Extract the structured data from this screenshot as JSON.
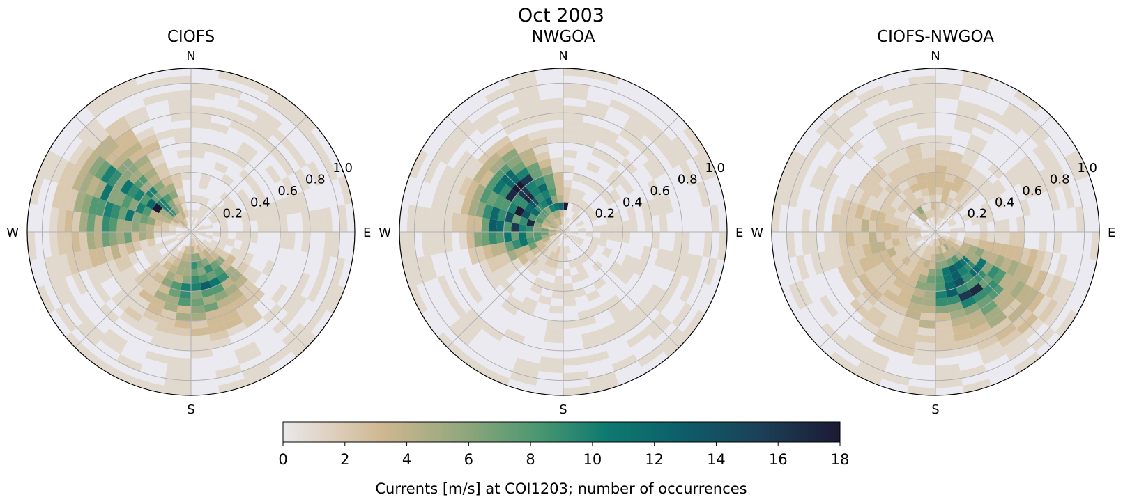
{
  "figure": {
    "suptitle": "Oct 2003",
    "colorbar_label": "Currents [m/s] at COI1203; number of occurrences"
  },
  "colors": {
    "axes_background": "#ebeaf0",
    "grid": "#b0b0b0",
    "colormap": [
      "#ebe8ea",
      "#cfb790",
      "#93a77d",
      "#4f9871",
      "#0e7a70",
      "#0d5d68",
      "#1c3f57",
      "#1c1a33"
    ]
  },
  "chart_data": [
    {
      "type": "heatmap",
      "subtype": "polar current rose (2-D histogram of direction vs speed)",
      "title": "CIOFS",
      "compass_labels": [
        "N",
        "E",
        "S",
        "W"
      ],
      "radial_ticks": [
        0.2,
        0.4,
        0.6,
        0.8,
        1.0
      ],
      "rlim": [
        0,
        1.1
      ],
      "n_direction_bins": 36,
      "speed_bin_width": 0.05,
      "hotspots": [
        {
          "dir_deg": 306,
          "speed": 0.62,
          "dir_spread": 18,
          "speed_spread": 0.18,
          "count": 6
        },
        {
          "dir_deg": 290,
          "speed": 0.45,
          "dir_spread": 20,
          "speed_spread": 0.15,
          "count": 5
        },
        {
          "dir_deg": 318,
          "speed": 0.25,
          "dir_spread": 16,
          "speed_spread": 0.12,
          "count": 7
        },
        {
          "dir_deg": 270,
          "speed": 0.55,
          "dir_spread": 14,
          "speed_spread": 0.25,
          "count": 3
        },
        {
          "dir_deg": 170,
          "speed": 0.35,
          "dir_spread": 22,
          "speed_spread": 0.15,
          "count": 6
        },
        {
          "dir_deg": 150,
          "speed": 0.3,
          "dir_spread": 16,
          "speed_spread": 0.12,
          "count": 5
        },
        {
          "dir_deg": 200,
          "speed": 0.35,
          "dir_spread": 18,
          "speed_spread": 0.15,
          "count": 3
        },
        {
          "dir_deg": 160,
          "speed": 0.6,
          "dir_spread": 22,
          "speed_spread": 0.15,
          "count": 2
        },
        {
          "dir_deg": 220,
          "speed": 0.7,
          "dir_spread": 30,
          "speed_spread": 0.2,
          "count": 1
        },
        {
          "dir_deg": 20,
          "speed": 0.12,
          "dir_spread": 40,
          "speed_spread": 0.08,
          "count": 1
        }
      ],
      "peaks": [
        {
          "dir_deg": 305,
          "speed": 0.27,
          "count": 13
        },
        {
          "dir_deg": 175,
          "speed": 0.33,
          "count": 9
        },
        {
          "dir_deg": 300,
          "speed": 0.5,
          "count": 8
        }
      ]
    },
    {
      "type": "heatmap",
      "subtype": "polar current rose (2-D histogram of direction vs speed)",
      "title": "NWGOA",
      "compass_labels": [
        "N",
        "E",
        "S",
        "W"
      ],
      "radial_ticks": [
        0.2,
        0.4,
        0.6,
        0.8,
        1.0
      ],
      "rlim": [
        0,
        1.1
      ],
      "n_direction_bins": 36,
      "speed_bin_width": 0.05,
      "hotspots": [
        {
          "dir_deg": 300,
          "speed": 0.35,
          "dir_spread": 24,
          "speed_spread": 0.18,
          "count": 9
        },
        {
          "dir_deg": 320,
          "speed": 0.4,
          "dir_spread": 18,
          "speed_spread": 0.15,
          "count": 7
        },
        {
          "dir_deg": 270,
          "speed": 0.35,
          "dir_spread": 14,
          "speed_spread": 0.18,
          "count": 6
        },
        {
          "dir_deg": 340,
          "speed": 0.2,
          "dir_spread": 14,
          "speed_spread": 0.1,
          "count": 5
        },
        {
          "dir_deg": 250,
          "speed": 0.25,
          "dir_spread": 16,
          "speed_spread": 0.12,
          "count": 4
        },
        {
          "dir_deg": 200,
          "speed": 0.18,
          "dir_spread": 16,
          "speed_spread": 0.1,
          "count": 2
        },
        {
          "dir_deg": 40,
          "speed": 0.2,
          "dir_spread": 30,
          "speed_spread": 0.12,
          "count": 1
        },
        {
          "dir_deg": 300,
          "speed": 0.65,
          "dir_spread": 20,
          "speed_spread": 0.12,
          "count": 1
        }
      ],
      "peaks": [
        {
          "dir_deg": 5,
          "speed": 0.17,
          "count": 18
        },
        {
          "dir_deg": 350,
          "speed": 0.17,
          "count": 10
        },
        {
          "dir_deg": 295,
          "speed": 0.3,
          "count": 13
        },
        {
          "dir_deg": 310,
          "speed": 0.4,
          "count": 11
        },
        {
          "dir_deg": 280,
          "speed": 0.25,
          "count": 12
        }
      ]
    },
    {
      "type": "heatmap",
      "subtype": "polar current rose (2-D histogram of direction vs speed)",
      "title": "CIOFS-NWGOA",
      "compass_labels": [
        "N",
        "E",
        "S",
        "W"
      ],
      "radial_ticks": [
        0.2,
        0.4,
        0.6,
        0.8,
        1.0
      ],
      "rlim": [
        0,
        1.1
      ],
      "n_direction_bins": 36,
      "speed_bin_width": 0.05,
      "hotspots": [
        {
          "dir_deg": 145,
          "speed": 0.4,
          "dir_spread": 20,
          "speed_spread": 0.2,
          "count": 7
        },
        {
          "dir_deg": 165,
          "speed": 0.35,
          "dir_spread": 18,
          "speed_spread": 0.15,
          "count": 5
        },
        {
          "dir_deg": 120,
          "speed": 0.45,
          "dir_spread": 16,
          "speed_spread": 0.15,
          "count": 4
        },
        {
          "dir_deg": 260,
          "speed": 0.4,
          "dir_spread": 22,
          "speed_spread": 0.2,
          "count": 3
        },
        {
          "dir_deg": 200,
          "speed": 0.4,
          "dir_spread": 22,
          "speed_spread": 0.2,
          "count": 3
        },
        {
          "dir_deg": 10,
          "speed": 0.3,
          "dir_spread": 40,
          "speed_spread": 0.2,
          "count": 2
        },
        {
          "dir_deg": 320,
          "speed": 0.5,
          "dir_spread": 40,
          "speed_spread": 0.3,
          "count": 1
        },
        {
          "dir_deg": 130,
          "speed": 0.8,
          "dir_spread": 20,
          "speed_spread": 0.15,
          "count": 2
        },
        {
          "dir_deg": 200,
          "speed": 0.8,
          "dir_spread": 30,
          "speed_spread": 0.15,
          "count": 1
        }
      ],
      "peaks": [
        {
          "dir_deg": 150,
          "speed": 0.45,
          "count": 13
        },
        {
          "dir_deg": 135,
          "speed": 0.4,
          "count": 12
        },
        {
          "dir_deg": 145,
          "speed": 0.35,
          "count": 10
        },
        {
          "dir_deg": 320,
          "speed": 0.15,
          "count": 5
        }
      ]
    }
  ],
  "colorbar": {
    "ticks": [
      "0",
      "2",
      "4",
      "6",
      "8",
      "10",
      "12",
      "14",
      "16",
      "18"
    ],
    "vmin": 0,
    "vmax": 18
  }
}
